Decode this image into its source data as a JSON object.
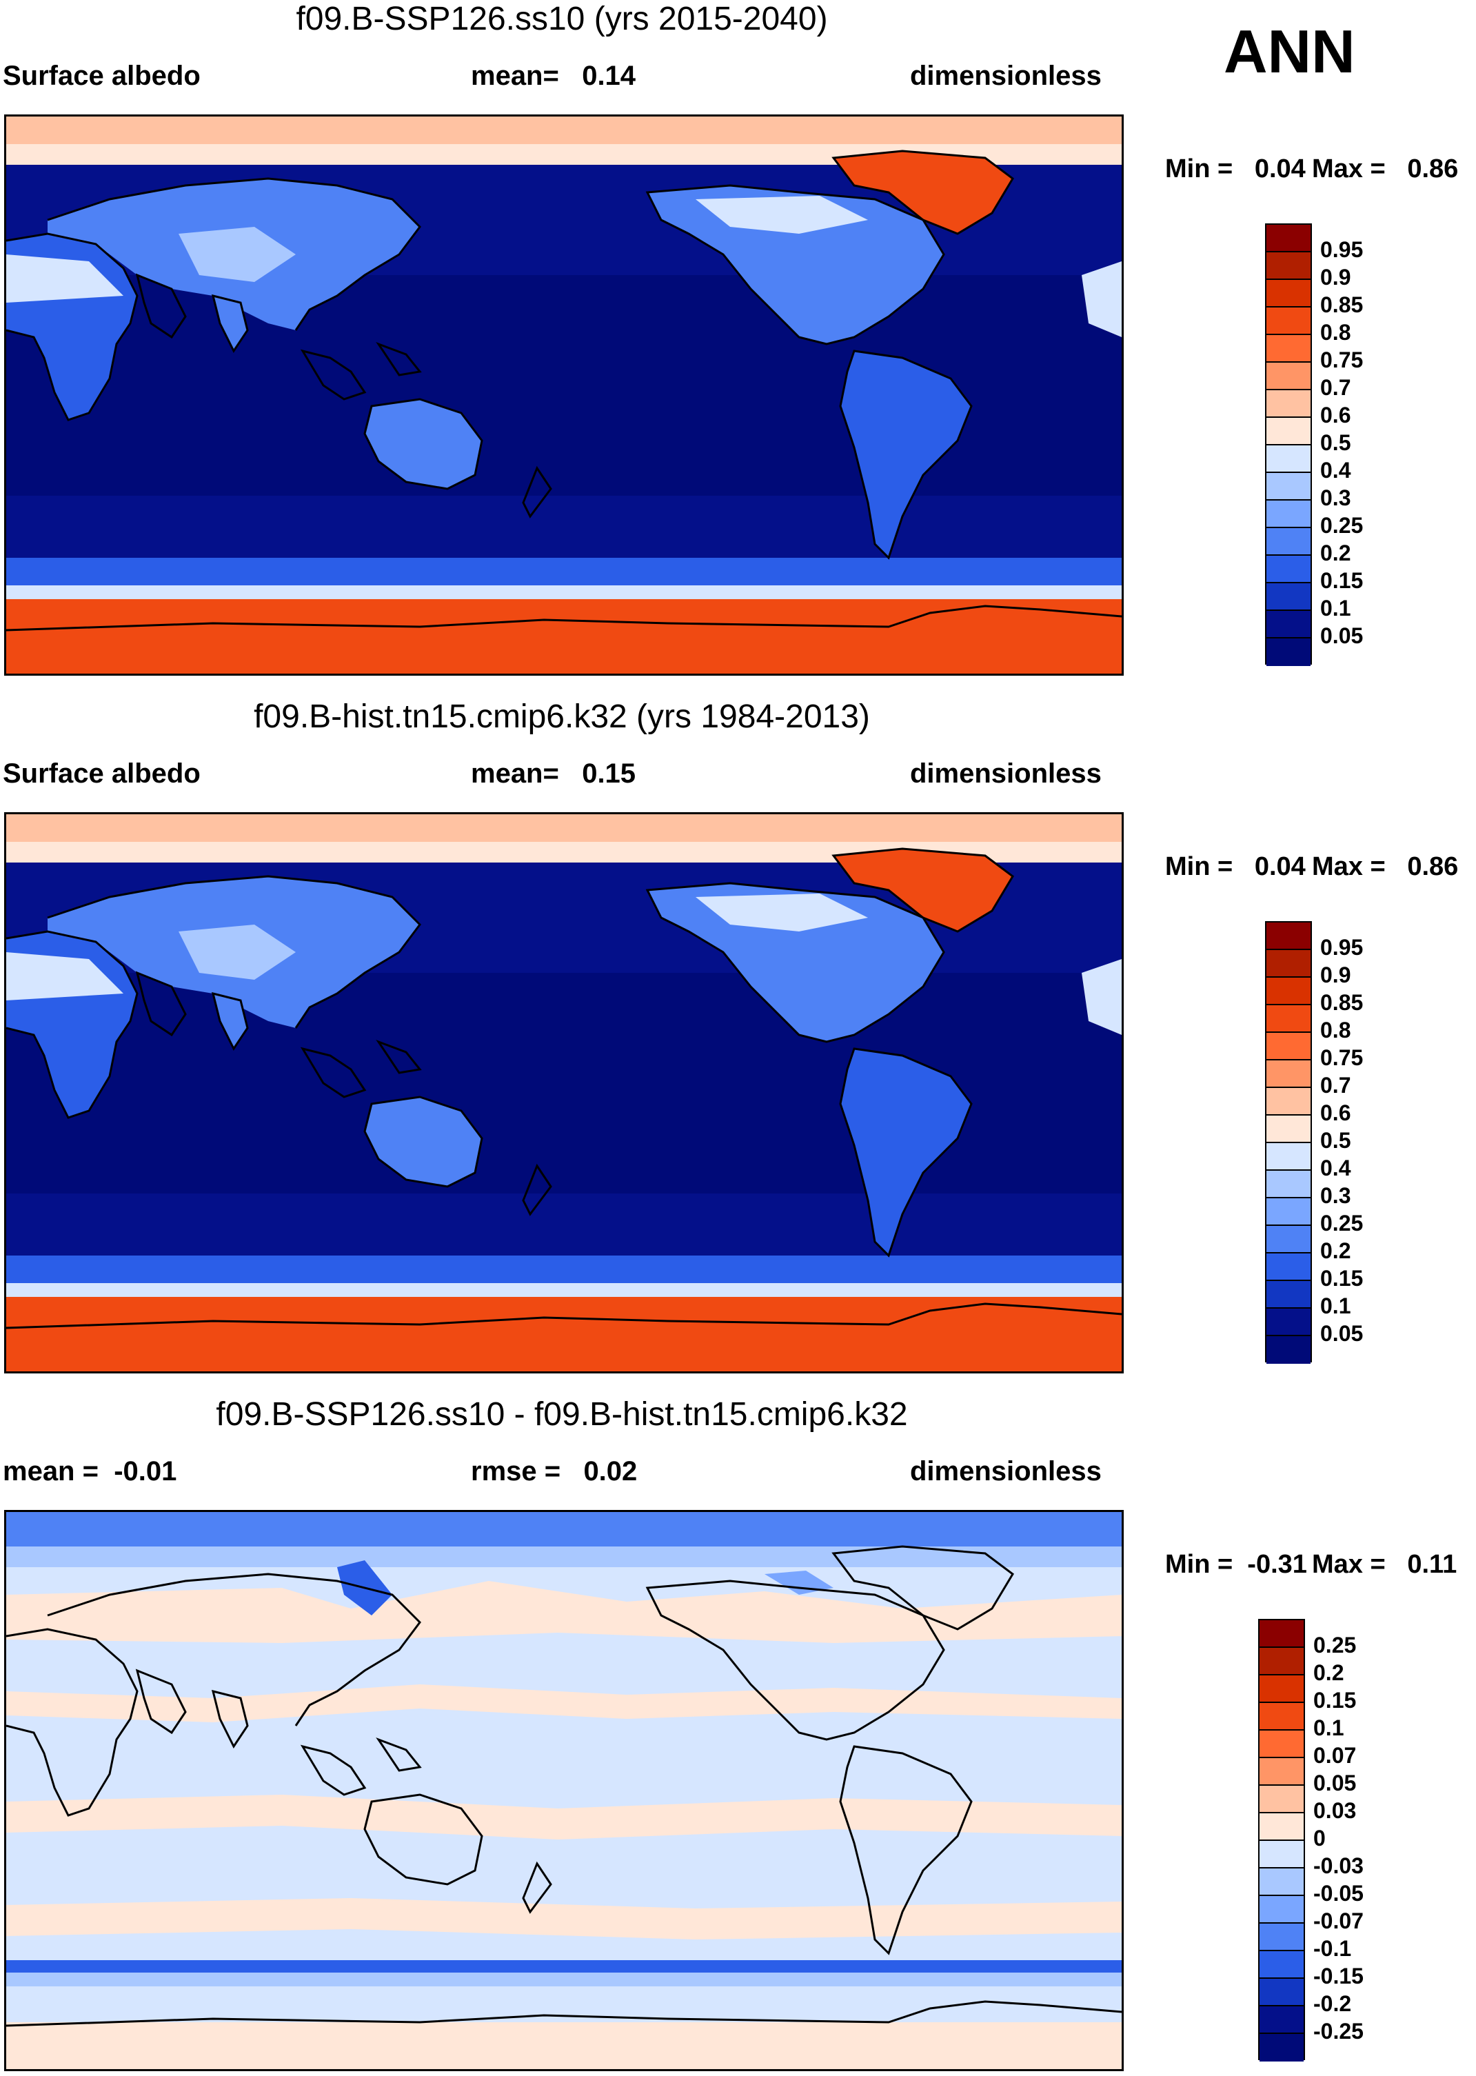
{
  "season": "ANN",
  "panels": [
    {
      "title": "f09.B-SSP126.ss10 (yrs 2015-2040)",
      "left": "Surface albedo",
      "center": "mean=   0.14",
      "right": "dimensionless",
      "minmax_min": "Min =   0.04",
      "minmax_max": "Max =   0.86",
      "type": "abs"
    },
    {
      "title": "f09.B-hist.tn15.cmip6.k32 (yrs 1984-2013)",
      "left": "Surface albedo",
      "center": "mean=   0.15",
      "right": "dimensionless",
      "minmax_min": "Min =   0.04",
      "minmax_max": "Max =   0.86",
      "type": "abs"
    },
    {
      "title": "f09.B-SSP126.ss10 - f09.B-hist.tn15.cmip6.k32",
      "left": "mean =  -0.01",
      "center": "rmse =   0.02",
      "right": "dimensionless",
      "minmax_min": "Min =  -0.31",
      "minmax_max": "Max =   0.11",
      "type": "diff"
    }
  ],
  "colorbars": {
    "abs": {
      "labels": [
        "0.95",
        "0.9",
        "0.85",
        "0.8",
        "0.75",
        "0.7",
        "0.6",
        "0.5",
        "0.4",
        "0.3",
        "0.25",
        "0.2",
        "0.15",
        "0.1",
        "0.05"
      ],
      "colors": [
        "#8b0000",
        "#b01f00",
        "#d93200",
        "#f04a12",
        "#ff6a32",
        "#ff9566",
        "#ffc2a2",
        "#ffe7d8",
        "#d6e6ff",
        "#a9c8ff",
        "#7aa6ff",
        "#4f82f5",
        "#2b5ee8",
        "#1237c2",
        "#04108a",
        "#000a78"
      ]
    },
    "diff": {
      "labels": [
        "0.25",
        "0.2",
        "0.15",
        "0.1",
        "0.07",
        "0.05",
        "0.03",
        "0",
        "-0.03",
        "-0.05",
        "-0.07",
        "-0.1",
        "-0.15",
        "-0.2",
        "-0.25"
      ],
      "colors": [
        "#8b0000",
        "#b01f00",
        "#d93200",
        "#f04a12",
        "#ff6a32",
        "#ff9566",
        "#ffc2a2",
        "#ffe7d8",
        "#d6e6ff",
        "#a9c8ff",
        "#7aa6ff",
        "#4f82f5",
        "#2b5ee8",
        "#1237c2",
        "#04108a",
        "#000a78"
      ]
    }
  }
}
